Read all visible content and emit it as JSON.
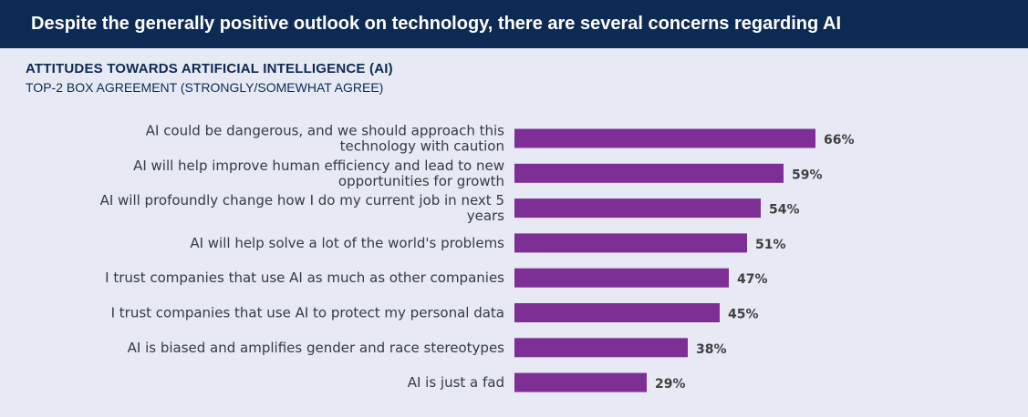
{
  "header": {
    "title": "Despite the generally positive outlook on technology, there are several concerns regarding AI"
  },
  "colors": {
    "header_bg": "#0d2a55",
    "background": "#e7e9f5",
    "bar": "#7e2f96",
    "title_text": "#0d2a55"
  },
  "chart_data": {
    "type": "bar",
    "orientation": "horizontal",
    "title": "ATTITUDES TOWARDS ARTIFICIAL INTELLIGENCE (AI)",
    "subtitle": "TOP-2 BOX AGREEMENT (STRONGLY/SOMEWHAT AGREE)",
    "categories": [
      "AI could be dangerous, and we should approach this technology with caution",
      "AI will help improve human efficiency and lead to new opportunities for growth",
      "AI will profoundly change how I do my current job in next 5 years",
      "AI will help solve a lot of the world's problems",
      "I trust companies that use AI as much as other companies",
      "I trust companies that use AI to protect my personal data",
      "AI is biased and amplifies gender and race stereotypes",
      "AI is just a fad"
    ],
    "category_lines": [
      [
        "AI could be dangerous, and we should approach this",
        "technology with caution"
      ],
      [
        "AI will help improve human efficiency and lead to new",
        "opportunities for growth"
      ],
      [
        "AI will profoundly change how I do my current job in next 5",
        "years"
      ],
      [
        "AI will help solve a lot of the world's problems"
      ],
      [
        "I trust companies that use AI as much as other companies"
      ],
      [
        "I trust companies that use AI to protect my personal data"
      ],
      [
        "AI is biased and amplifies gender and race stereotypes"
      ],
      [
        "AI is just a fad"
      ]
    ],
    "values": [
      66,
      59,
      54,
      51,
      47,
      45,
      38,
      29
    ],
    "value_labels": [
      "66%",
      "59%",
      "54%",
      "51%",
      "47%",
      "45%",
      "38%",
      "29%"
    ],
    "xlim": [
      0,
      100
    ],
    "grid": false,
    "legend": "none"
  }
}
